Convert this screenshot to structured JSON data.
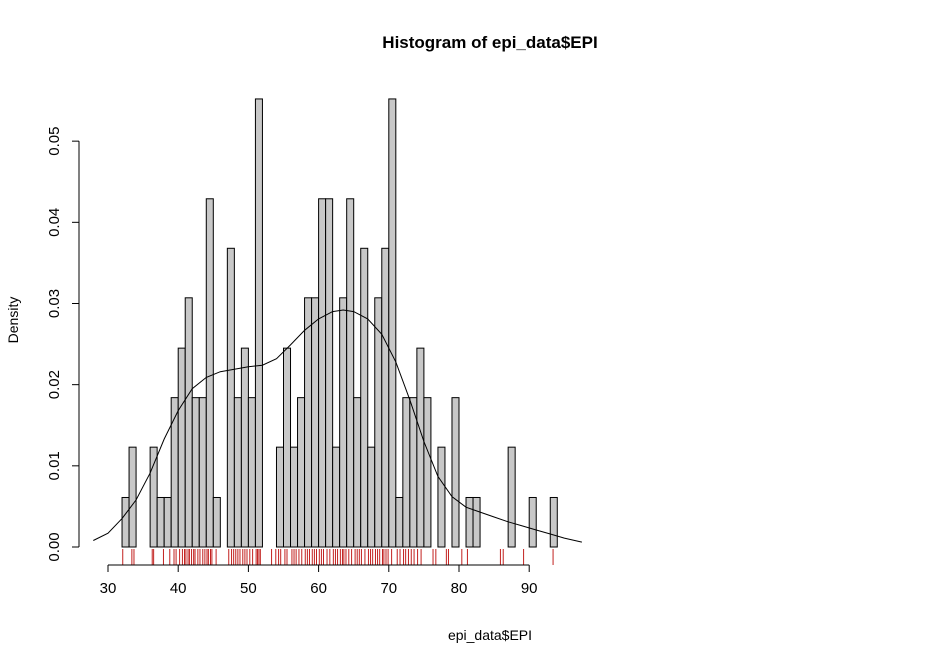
{
  "chart_data": {
    "type": "bar",
    "title": "Histogram of epi_data$EPI",
    "xlabel": "epi_data$EPI",
    "ylabel": "Density",
    "xlim": [
      28,
      97
    ],
    "ylim": [
      0,
      0.056
    ],
    "x_ticks": [
      30,
      40,
      50,
      60,
      70,
      80,
      90
    ],
    "x_tick_labels": [
      "30",
      "40",
      "50",
      "60",
      "70",
      "80",
      "90"
    ],
    "y_ticks": [
      0,
      0.01,
      0.02,
      0.03,
      0.04,
      0.05
    ],
    "y_tick_labels": [
      "0.00",
      "0.01",
      "0.02",
      "0.03",
      "0.04",
      "0.05"
    ],
    "grid": false,
    "bin_width": 1,
    "bin_start": 30,
    "densities": [
      0,
      0,
      0.0061,
      0.0123,
      0,
      0,
      0.0123,
      0.0061,
      0.0061,
      0.0184,
      0.0245,
      0.0307,
      0.0184,
      0.0184,
      0.0429,
      0.0061,
      0,
      0.0368,
      0.0184,
      0.0245,
      0.0184,
      0.0552,
      0,
      0,
      0.0123,
      0.0245,
      0.0123,
      0.0184,
      0.0307,
      0.0307,
      0.0429,
      0.0429,
      0.0123,
      0.0307,
      0.0429,
      0.0184,
      0.0368,
      0.0123,
      0.0307,
      0.0368,
      0.0552,
      0.0061,
      0.0184,
      0.0184,
      0.0245,
      0.0184,
      0,
      0.0123,
      0,
      0.0184,
      0,
      0.0061,
      0.0061,
      0,
      0,
      0,
      0,
      0.0123,
      0,
      0,
      0.0061,
      0,
      0,
      0.0061,
      0
    ],
    "density_curve": {
      "x": [
        27.9,
        30,
        32,
        34,
        36,
        38,
        40,
        42,
        44,
        46,
        48,
        50,
        52,
        54,
        56,
        58,
        60,
        62,
        63.5,
        65,
        67,
        69,
        71,
        73,
        75,
        77,
        79,
        81,
        83,
        85,
        87,
        89,
        91,
        93,
        95,
        97.5
      ],
      "y": [
        0.0008,
        0.0017,
        0.0035,
        0.0058,
        0.0091,
        0.0133,
        0.0168,
        0.0195,
        0.0209,
        0.0216,
        0.0219,
        0.0222,
        0.0224,
        0.0232,
        0.0249,
        0.0267,
        0.0281,
        0.029,
        0.0292,
        0.029,
        0.0281,
        0.0262,
        0.0228,
        0.0181,
        0.013,
        0.0087,
        0.0062,
        0.0049,
        0.0043,
        0.0037,
        0.0031,
        0.0026,
        0.0021,
        0.0016,
        0.0011,
        0.0006
      ]
    },
    "rug": [
      32.1,
      33.4,
      33.7,
      36.3,
      36.5,
      37.9,
      38.8,
      39.4,
      39.7,
      40.2,
      40.6,
      40.9,
      41.1,
      41.4,
      41.6,
      41.9,
      42.2,
      42.4,
      42.8,
      43.1,
      43.5,
      43.8,
      44.1,
      44.3,
      44.6,
      44.8,
      45.4,
      47.2,
      47.6,
      47.9,
      48.2,
      48.5,
      48.8,
      49.2,
      49.5,
      49.8,
      50.2,
      50.6,
      51.1,
      51.3,
      51.5,
      51.7,
      53.3,
      53.9,
      54.3,
      54.6,
      55.2,
      55.5,
      56.2,
      56.5,
      56.8,
      57.2,
      57.6,
      58.1,
      58.4,
      58.7,
      59.1,
      59.4,
      59.7,
      60.1,
      60.4,
      60.7,
      61.2,
      61.6,
      62.1,
      62.4,
      62.7,
      63.1,
      63.4,
      63.6,
      63.9,
      64.3,
      64.7,
      65.2,
      65.5,
      65.8,
      66.1,
      66.6,
      67.1,
      67.4,
      67.7,
      68.1,
      68.4,
      68.7,
      69.1,
      69.3,
      69.6,
      69.9,
      70.4,
      71.2,
      71.6,
      72.1,
      72.4,
      72.8,
      73.2,
      73.6,
      74.1,
      74.6,
      76.3,
      76.7,
      78.2,
      78.5,
      80.4,
      81.2,
      85.9,
      86.3,
      89.2,
      93.4
    ]
  }
}
